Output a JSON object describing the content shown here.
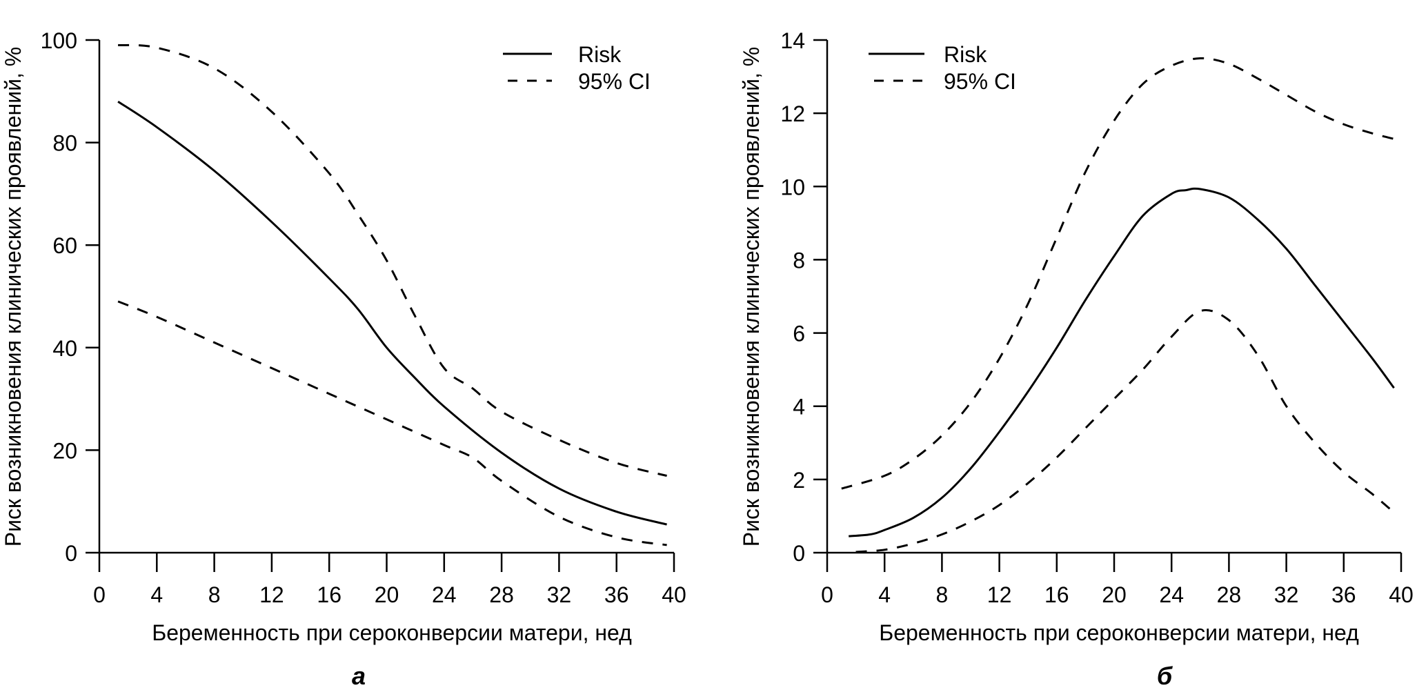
{
  "chart_data": [
    {
      "type": "line",
      "panel_label": "а",
      "title": "",
      "xlabel": "Беременность при сероконверсии матери, нед",
      "ylabel": "Риск возникновения клинических проявлений, %",
      "xlim": [
        0,
        40
      ],
      "ylim": [
        0,
        100
      ],
      "xticks": [
        0,
        4,
        8,
        12,
        16,
        20,
        24,
        28,
        32,
        36,
        40
      ],
      "yticks": [
        0,
        20,
        40,
        60,
        80,
        100
      ],
      "grid": false,
      "legend_position": "top-right",
      "series": [
        {
          "name": "Risk",
          "style": "solid",
          "x": [
            1.3,
            4,
            8,
            12,
            16,
            18,
            20,
            22,
            24,
            28,
            32,
            36,
            39.5
          ],
          "y": [
            88,
            83,
            74.5,
            64.5,
            53.5,
            47.5,
            40,
            34,
            28.5,
            19.5,
            12.5,
            8,
            5.5
          ]
        },
        {
          "name": "95% CI",
          "style": "dashed",
          "role": "upper",
          "x": [
            1.3,
            4,
            8,
            12,
            16,
            18,
            20,
            22,
            24,
            26,
            28,
            32,
            36,
            39.5
          ],
          "y": [
            99,
            98.5,
            94.5,
            86,
            74,
            66,
            57,
            46,
            36,
            32,
            27.5,
            22,
            17.5,
            15
          ]
        },
        {
          "name": "95% CI",
          "style": "dashed",
          "role": "lower",
          "x": [
            1.3,
            4,
            8,
            12,
            16,
            20,
            24,
            26,
            28,
            32,
            36,
            39.5
          ],
          "y": [
            49,
            46,
            41,
            36,
            31,
            26,
            21,
            18.5,
            14,
            7,
            3,
            1.5
          ]
        }
      ]
    },
    {
      "type": "line",
      "panel_label": "б",
      "title": "",
      "xlabel": "Беременность при сероконверсии матери, нед",
      "ylabel": "Риск возникновения клинических проявлений, %",
      "xlim": [
        0,
        40
      ],
      "ylim": [
        0,
        14
      ],
      "xticks": [
        0,
        4,
        8,
        12,
        16,
        20,
        24,
        28,
        32,
        36,
        40
      ],
      "yticks": [
        0,
        2,
        4,
        6,
        8,
        10,
        12,
        14
      ],
      "grid": false,
      "legend_position": "top-left",
      "series": [
        {
          "name": "Risk",
          "style": "solid",
          "x": [
            1.5,
            3,
            4,
            6,
            8,
            10,
            12,
            14,
            16,
            18,
            20,
            22,
            24,
            25,
            26,
            28,
            30,
            32,
            34,
            36,
            38,
            39.5
          ],
          "y": [
            0.45,
            0.5,
            0.62,
            0.95,
            1.5,
            2.3,
            3.3,
            4.4,
            5.6,
            6.9,
            8.1,
            9.2,
            9.8,
            9.9,
            9.93,
            9.7,
            9.1,
            8.3,
            7.3,
            6.3,
            5.3,
            4.5
          ]
        },
        {
          "name": "95% CI",
          "style": "dashed",
          "role": "upper",
          "x": [
            1,
            4,
            6,
            8,
            10,
            12,
            14,
            16,
            18,
            20,
            22,
            24,
            26,
            28,
            30,
            32,
            34,
            36,
            38,
            39.5
          ],
          "y": [
            1.75,
            2.1,
            2.55,
            3.2,
            4.1,
            5.3,
            6.8,
            8.6,
            10.4,
            11.8,
            12.8,
            13.3,
            13.5,
            13.35,
            12.95,
            12.5,
            12.05,
            11.7,
            11.45,
            11.3
          ]
        },
        {
          "name": "95% CI",
          "style": "dashed",
          "role": "lower",
          "x": [
            2,
            4,
            6,
            8,
            10,
            12,
            14,
            16,
            18,
            20,
            22,
            24,
            26,
            28,
            30,
            32,
            34,
            36,
            38,
            39.5
          ],
          "y": [
            0.02,
            0.08,
            0.25,
            0.5,
            0.85,
            1.3,
            1.9,
            2.6,
            3.4,
            4.2,
            5.0,
            5.9,
            6.6,
            6.35,
            5.4,
            4.0,
            3.0,
            2.2,
            1.6,
            1.1
          ]
        }
      ]
    }
  ],
  "legend": {
    "risk_label": "Risk",
    "ci_label": "95% CI"
  }
}
